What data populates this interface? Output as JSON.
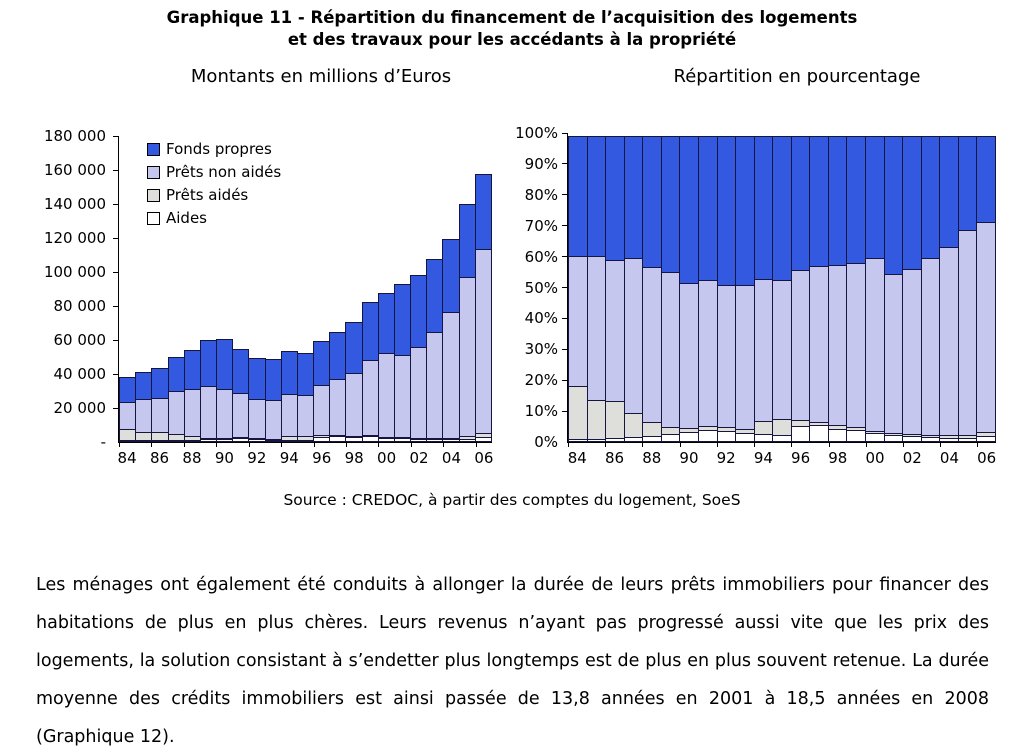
{
  "figure": {
    "title_line1": "Graphique 11 - Répartition du financement de l’acquisition des logements",
    "title_line2": "et des travaux pour les accédants à la propriété",
    "source": "Source : CREDOC, à partir des comptes du logement, SoeS"
  },
  "colors": {
    "fonds_propres": "#3359E0",
    "prets_non_aides": "#C6C7EF",
    "prets_aides": "#DEDEDB",
    "aides": "#FFFFFF",
    "bar_border": "#15153d",
    "axis": "#000000"
  },
  "legend": [
    {
      "label": "Fonds propres",
      "color": "#3359E0"
    },
    {
      "label": "Prêts non aidés",
      "color": "#C6C7EF"
    },
    {
      "label": "Prêts aidés",
      "color": "#DEDEDB"
    },
    {
      "label": "Aides",
      "color": "#FFFFFF"
    }
  ],
  "chart_data": [
    {
      "type": "bar",
      "stacked": true,
      "title": "Montants en millions d’Euros",
      "categories": [
        "1984",
        "1985",
        "1986",
        "1987",
        "1988",
        "1989",
        "1990",
        "1991",
        "1992",
        "1993",
        "1994",
        "1995",
        "1996",
        "1997",
        "1998",
        "1999",
        "2000",
        "2001",
        "2002",
        "2003",
        "2004",
        "2005",
        "2006"
      ],
      "x_tick_labels": [
        "84",
        "86",
        "88",
        "90",
        "92",
        "94",
        "96",
        "98",
        "00",
        "02",
        "04",
        "06"
      ],
      "ylim": [
        0,
        180000
      ],
      "y_tick_labels": [
        "-",
        "20 000",
        "40 000",
        "60 000",
        "80 000",
        "100 000",
        "120 000",
        "140 000",
        "160 000",
        "180 000"
      ],
      "grid": false,
      "legend_position": "top-left-inside",
      "series": [
        {
          "name": "Aides",
          "color": "#FFFFFF",
          "values": [
            400,
            450,
            650,
            800,
            1000,
            1550,
            2000,
            2100,
            1800,
            1450,
            1400,
            1200,
            3100,
            3550,
            3100,
            3350,
            2600,
            2100,
            1800,
            1750,
            1700,
            2000,
            2850
          ]
        },
        {
          "name": "Prêts aidés",
          "color": "#DEDEDB",
          "values": [
            6900,
            5400,
            5400,
            4200,
            2800,
            1600,
            1050,
            900,
            800,
            850,
            2500,
            3100,
            1350,
            950,
            1000,
            900,
            1000,
            1050,
            1100,
            1200,
            1350,
            1850,
            2850
          ]
        },
        {
          "name": "Prêts non aidés",
          "color": "#C6C7EF",
          "values": [
            16800,
            19650,
            20700,
            26000,
            28100,
            31050,
            29450,
            26700,
            23500,
            23450,
            25650,
            24400,
            30050,
            33500,
            37650,
            44850,
            50000,
            49000,
            53850,
            62750,
            74350,
            94600,
            109100
          ]
        },
        {
          "name": "Fonds propres",
          "color": "#3359E0",
          "values": [
            15400,
            16500,
            18050,
            20500,
            23900,
            27300,
            30000,
            26300,
            24600,
            24250,
            25750,
            25300,
            26700,
            28100,
            30250,
            34700,
            35500,
            42450,
            43150,
            43600,
            43700,
            43350,
            44650
          ]
        }
      ]
    },
    {
      "type": "bar",
      "stacked": true,
      "percent": true,
      "title": "Répartition en pourcentage",
      "categories": [
        "1984",
        "1985",
        "1986",
        "1987",
        "1988",
        "1989",
        "1990",
        "1991",
        "1992",
        "1993",
        "1994",
        "1995",
        "1996",
        "1997",
        "1998",
        "1999",
        "2000",
        "2001",
        "2002",
        "2003",
        "2004",
        "2005",
        "2006"
      ],
      "x_tick_labels": [
        "84",
        "86",
        "88",
        "90",
        "92",
        "94",
        "96",
        "98",
        "00",
        "02",
        "04",
        "06"
      ],
      "ylim": [
        0,
        100
      ],
      "y_tick_labels": [
        "0%",
        "10%",
        "20%",
        "30%",
        "40%",
        "50%",
        "60%",
        "70%",
        "80%",
        "90%",
        "100%"
      ],
      "grid": false,
      "series": [
        {
          "name": "Aides",
          "color": "#FFFFFF",
          "values": [
            1.0,
            1.1,
            1.4,
            1.6,
            1.8,
            2.5,
            3.2,
            3.8,
            3.5,
            2.9,
            2.5,
            2.2,
            5.1,
            5.4,
            4.3,
            4.0,
            2.9,
            2.2,
            1.8,
            1.6,
            1.4,
            1.4,
            1.8
          ]
        },
        {
          "name": "Prêts aidés",
          "color": "#DEDEDB",
          "values": [
            17.5,
            12.8,
            12.1,
            8.1,
            5.0,
            2.6,
            1.7,
            1.6,
            1.6,
            1.7,
            4.5,
            5.7,
            2.2,
            1.4,
            1.4,
            1.1,
            1.1,
            1.1,
            1.1,
            1.1,
            1.1,
            1.3,
            1.8
          ]
        },
        {
          "name": "Prêts non aidés",
          "color": "#C6C7EF",
          "values": [
            42.5,
            46.8,
            46.2,
            50.5,
            50.4,
            50.5,
            47.1,
            47.7,
            46.4,
            46.9,
            46.4,
            45.2,
            49.1,
            50.7,
            52.3,
            53.5,
            56.1,
            51.8,
            53.9,
            57.4,
            61.4,
            66.7,
            68.4
          ]
        },
        {
          "name": "Fonds propres",
          "color": "#3359E0",
          "values": [
            39.0,
            39.3,
            40.3,
            39.8,
            42.8,
            44.4,
            48.0,
            46.9,
            48.5,
            48.5,
            46.6,
            46.9,
            43.6,
            42.5,
            42.0,
            41.4,
            39.9,
            45.0,
            43.2,
            39.9,
            36.1,
            30.6,
            28.0
          ]
        }
      ]
    }
  ],
  "paragraph": "Les ménages ont également été conduits à allonger la durée de leurs prêts immobiliers pour financer des habitations de plus en plus chères. Leurs revenus n’ayant pas progressé aussi vite que les prix des logements, la solution consistant à s’endetter plus longtemps est de plus en plus souvent retenue. La durée moyenne des crédits immobiliers est ainsi passée de 13,8 années en 2001 à 18,5 années en 2008 (Graphique 12)."
}
